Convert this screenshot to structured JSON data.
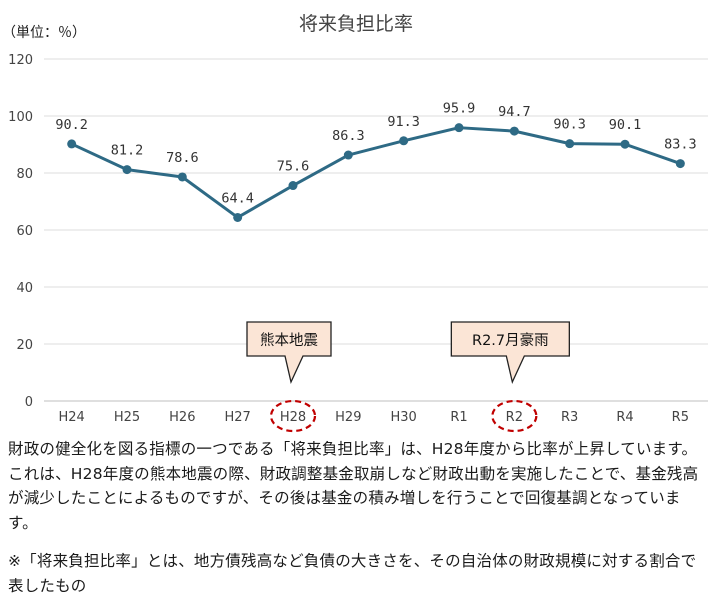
{
  "chart_data": {
    "type": "line",
    "title": "将来負担比率",
    "unit_label": "（単位：％）",
    "categories": [
      "H24",
      "H25",
      "H26",
      "H27",
      "H28",
      "H29",
      "H30",
      "R1",
      "R2",
      "R3",
      "R4",
      "R5"
    ],
    "values": [
      90.2,
      81.2,
      78.6,
      64.4,
      75.6,
      86.3,
      91.3,
      95.9,
      94.7,
      90.3,
      90.1,
      83.3
    ],
    "value_labels": [
      "90.2",
      "81.2",
      "78.6",
      "64.4",
      "75.6",
      "86.3",
      "91.3",
      "95.9",
      "94.7",
      "90.3",
      "90.1",
      "83.3"
    ],
    "yticks": [
      "0",
      "20",
      "40",
      "60",
      "80",
      "100",
      "120"
    ],
    "ylim": [
      0,
      120
    ],
    "grid": true,
    "line_color": "#2e6a85",
    "highlight_color": "#c00000",
    "annotations": [
      {
        "text": "熊本地震",
        "category": "H28"
      },
      {
        "text": "R2.7月豪雨",
        "category": "R2"
      }
    ]
  },
  "description": "財政の健全化を図る指標の一つである「将来負担比率」は、H28年度から比率が上昇しています。これは、H28年度の熊本地震の際、財政調整基金取崩しなど財政出動を実施したことで、基金残高が減少したことによるものですが、その後は基金の積み増しを行うことで回復基調となっています。",
  "note": "※「将来負担比率」とは、地方債残高など負債の大きさを、その自治体の財政規模に対する割合で表したもの"
}
